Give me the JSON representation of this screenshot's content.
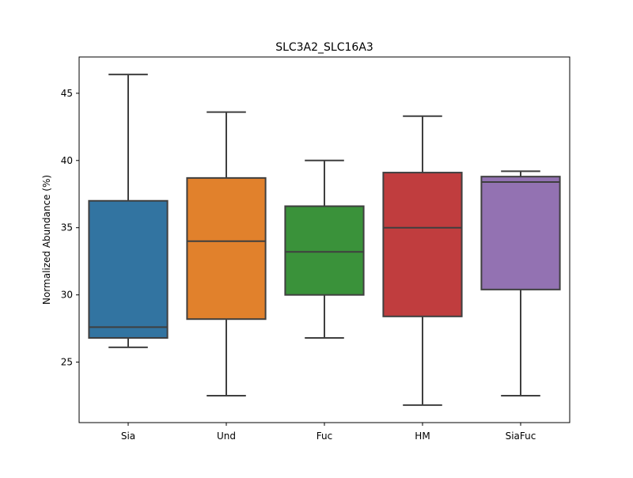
{
  "chart_data": {
    "type": "box",
    "title": "SLC3A2_SLC16A3",
    "xlabel": "",
    "ylabel": "Normalized Abundance (%)",
    "ylim": [
      20.5,
      47.7
    ],
    "yticks": [
      25,
      30,
      35,
      40,
      45
    ],
    "categories": [
      "Sia",
      "Und",
      "Fuc",
      "HM",
      "SiaFuc"
    ],
    "colors": [
      "#3274a1",
      "#e1812c",
      "#3a923a",
      "#c03d3e",
      "#9372b2"
    ],
    "boxes": [
      {
        "category": "Sia",
        "whisker_low": 26.1,
        "q1": 26.8,
        "median": 27.6,
        "q3": 37.0,
        "whisker_high": 46.4
      },
      {
        "category": "Und",
        "whisker_low": 22.5,
        "q1": 28.2,
        "median": 34.0,
        "q3": 38.7,
        "whisker_high": 43.6
      },
      {
        "category": "Fuc",
        "whisker_low": 26.8,
        "q1": 30.0,
        "median": 33.2,
        "q3": 36.6,
        "whisker_high": 40.0
      },
      {
        "category": "HM",
        "whisker_low": 21.8,
        "q1": 28.4,
        "median": 35.0,
        "q3": 39.1,
        "whisker_high": 43.3
      },
      {
        "category": "SiaFuc",
        "whisker_low": 22.5,
        "q1": 30.4,
        "median": 38.4,
        "q3": 38.8,
        "whisker_high": 39.2
      }
    ],
    "grid": false,
    "legend": "none"
  }
}
